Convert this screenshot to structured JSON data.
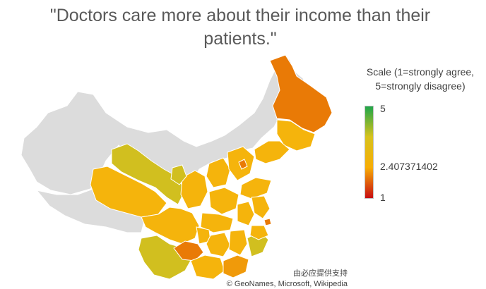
{
  "title": "\"Doctors care more about their income than their patients.\"",
  "legend": {
    "title_line1": "Scale (1=strongly agree,",
    "title_line2": "5=strongly disagree)",
    "max_label": "5",
    "mid_label": "2.407371402",
    "min_label": "1",
    "gradient_colors": [
      "#1fa64a",
      "#d7c21d",
      "#f7ad05",
      "#c70d12"
    ]
  },
  "credits": {
    "line1": "由必应提供支持",
    "line2": "© GeoNames, Microsoft, Wikipedia"
  },
  "colors": {
    "no_data": "#dcdcdc",
    "border": "#ffffff",
    "yellow_orange": "#f5b40c",
    "orange": "#f09a0a",
    "dark_orange": "#e97a06",
    "olive_yellow": "#d1bf1f"
  }
}
